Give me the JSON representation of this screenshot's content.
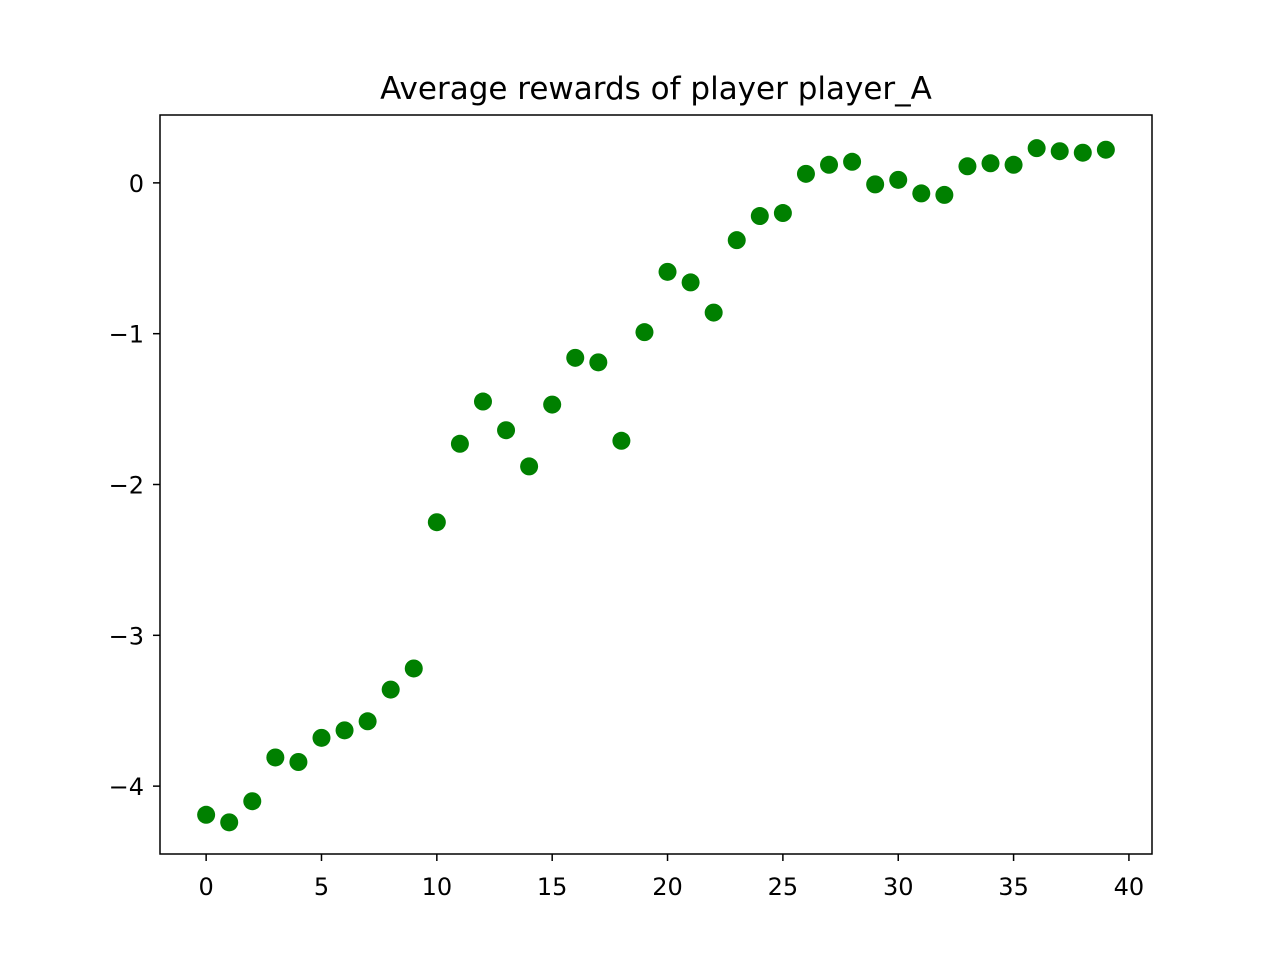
{
  "chart_data": {
    "type": "scatter",
    "title": "Average rewards of player player_A",
    "xlabel": "",
    "ylabel": "",
    "xlim": [
      -2,
      41
    ],
    "ylim": [
      -4.45,
      0.45
    ],
    "x_ticks": [
      {
        "value": 0,
        "label": "0"
      },
      {
        "value": 5,
        "label": "5"
      },
      {
        "value": 10,
        "label": "10"
      },
      {
        "value": 15,
        "label": "15"
      },
      {
        "value": 20,
        "label": "20"
      },
      {
        "value": 25,
        "label": "25"
      },
      {
        "value": 30,
        "label": "30"
      },
      {
        "value": 35,
        "label": "35"
      },
      {
        "value": 40,
        "label": "40"
      }
    ],
    "y_ticks": [
      {
        "value": 0,
        "label": "0"
      },
      {
        "value": -1,
        "label": "−1"
      },
      {
        "value": -2,
        "label": "−2"
      },
      {
        "value": -3,
        "label": "−3"
      },
      {
        "value": -4,
        "label": "−4"
      }
    ],
    "grid": false,
    "legend": "none",
    "marker_color": "#008000",
    "series": [
      {
        "x": [
          0,
          1,
          2,
          3,
          4,
          5,
          6,
          7,
          8,
          9,
          10,
          11,
          12,
          13,
          14,
          15,
          16,
          17,
          18,
          19,
          20,
          21,
          22,
          23,
          24,
          25,
          26,
          27,
          28,
          29,
          30,
          31,
          32,
          33,
          34,
          35,
          36,
          37,
          38,
          39
        ],
        "y": [
          -4.19,
          -4.24,
          -4.1,
          -3.81,
          -3.84,
          -3.68,
          -3.63,
          -3.57,
          -3.36,
          -3.22,
          -2.25,
          -1.73,
          -1.45,
          -1.64,
          -1.88,
          -1.47,
          -1.16,
          -1.19,
          -1.71,
          -0.99,
          -0.59,
          -0.66,
          -0.86,
          -0.38,
          -0.22,
          -0.2,
          0.06,
          0.12,
          0.14,
          -0.01,
          0.02,
          -0.07,
          -0.08,
          0.11,
          0.13,
          0.12,
          0.23,
          0.21,
          0.2,
          0.22
        ]
      }
    ]
  }
}
